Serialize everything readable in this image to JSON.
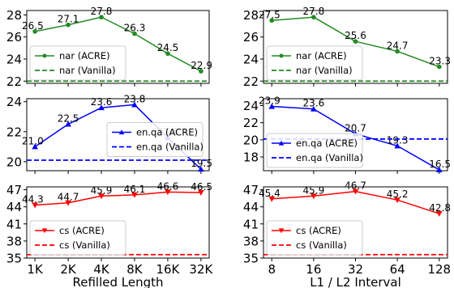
{
  "chart_data": [
    {
      "type": "line",
      "x": [
        "1K",
        "2K",
        "4K",
        "8K",
        "16K",
        "32K"
      ],
      "series": [
        {
          "name": "nar (ACRE)",
          "values": [
            26.5,
            27.1,
            27.8,
            26.3,
            24.5,
            22.9
          ],
          "color": "#228b22",
          "marker": "circle",
          "style": "solid"
        },
        {
          "name": "nar (Vanilla)",
          "values": [
            22.0,
            22.0,
            22.0,
            22.0,
            22.0,
            22.0
          ],
          "color": "#228b22",
          "style": "dashed"
        }
      ],
      "ylim": [
        21.8,
        28.4
      ],
      "yticks": [
        22,
        24,
        26,
        28
      ],
      "legend": "lower-left"
    },
    {
      "type": "line",
      "x": [
        "1K",
        "2K",
        "4K",
        "8K",
        "16K",
        "32K"
      ],
      "series": [
        {
          "name": "en.qa (ACRE)",
          "values": [
            21.0,
            22.5,
            23.6,
            23.8,
            21.6,
            19.5
          ],
          "color": "#0000ff",
          "marker": "triangle",
          "style": "solid"
        },
        {
          "name": "en.qa (Vanilla)",
          "values": [
            20.1,
            20.1,
            20.1,
            20.1,
            20.1,
            20.1
          ],
          "color": "#0000ff",
          "style": "dashed"
        }
      ],
      "ylim": [
        19.4,
        24.2
      ],
      "yticks": [
        20,
        22,
        24
      ],
      "legend": "center-right"
    },
    {
      "type": "line",
      "x": [
        "1K",
        "2K",
        "4K",
        "8K",
        "16K",
        "32K"
      ],
      "xlabel": "Refilled Length",
      "series": [
        {
          "name": "cs (ACRE)",
          "values": [
            44.3,
            44.7,
            45.9,
            46.1,
            46.6,
            46.5
          ],
          "color": "#ff0000",
          "marker": "triangle-down",
          "style": "solid"
        },
        {
          "name": "cs (Vanilla)",
          "values": [
            35.6,
            35.6,
            35.6,
            35.6,
            35.6,
            35.6
          ],
          "color": "#ff0000",
          "style": "dashed"
        }
      ],
      "ylim": [
        35.0,
        47.5
      ],
      "yticks": [
        35,
        38,
        41,
        44,
        47
      ],
      "legend": "lower-left"
    },
    {
      "type": "line",
      "x": [
        "8",
        "16",
        "32",
        "64",
        "128"
      ],
      "series": [
        {
          "name": "nar (ACRE)",
          "values": [
            27.5,
            27.8,
            25.6,
            24.7,
            23.3
          ],
          "color": "#228b22",
          "marker": "circle",
          "style": "solid"
        },
        {
          "name": "nar (Vanilla)",
          "values": [
            22.0,
            22.0,
            22.0,
            22.0,
            22.0
          ],
          "color": "#228b22",
          "style": "dashed"
        }
      ],
      "ylim": [
        21.8,
        28.4
      ],
      "yticks": [
        22,
        24,
        26,
        28
      ],
      "legend": "lower-left"
    },
    {
      "type": "line",
      "x": [
        "8",
        "16",
        "32",
        "64",
        "128"
      ],
      "series": [
        {
          "name": "en.qa (ACRE)",
          "values": [
            23.9,
            23.6,
            20.7,
            19.3,
            16.5
          ],
          "color": "#0000ff",
          "marker": "triangle",
          "style": "solid"
        },
        {
          "name": "en.qa (Vanilla)",
          "values": [
            20.1,
            20.1,
            20.1,
            20.1,
            20.1
          ],
          "color": "#0000ff",
          "style": "dashed"
        }
      ],
      "ylim": [
        16.4,
        24.8
      ],
      "yticks": [
        18,
        20,
        22,
        24
      ],
      "legend": "lower-left"
    },
    {
      "type": "line",
      "x": [
        "8",
        "16",
        "32",
        "64",
        "128"
      ],
      "xlabel": "L1 / L2 Interval",
      "series": [
        {
          "name": "cs (ACRE)",
          "values": [
            45.4,
            45.9,
            46.7,
            45.2,
            42.8
          ],
          "color": "#ff0000",
          "marker": "triangle-down",
          "style": "solid"
        },
        {
          "name": "cs (Vanilla)",
          "values": [
            35.6,
            35.6,
            35.6,
            35.6,
            35.6
          ],
          "color": "#ff0000",
          "style": "dashed"
        }
      ],
      "ylim": [
        35.0,
        47.5
      ],
      "yticks": [
        35,
        38,
        41,
        44,
        47
      ],
      "legend": "lower-left"
    }
  ]
}
